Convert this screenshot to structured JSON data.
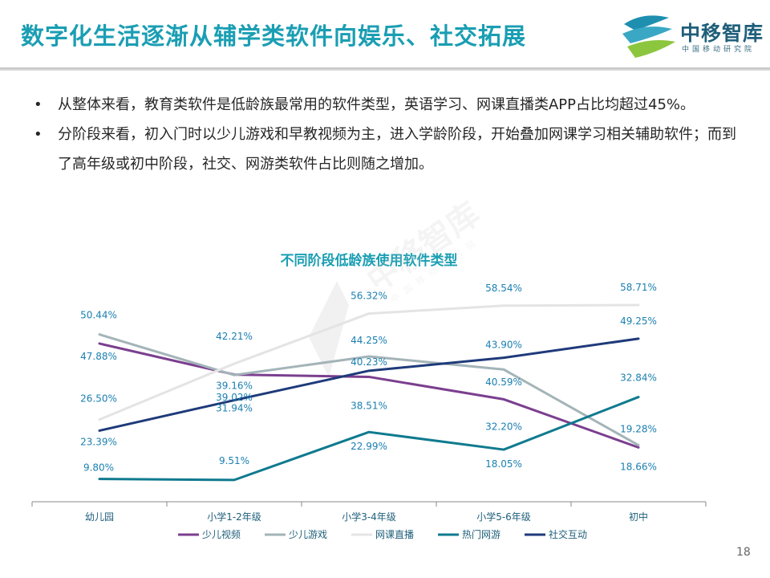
{
  "header": {
    "title": "数字化生活逐渐从辅学类软件向娱乐、社交拓展",
    "logo_name": "中移智库",
    "logo_sub": "中国移动研究院"
  },
  "bullets": [
    "从整体来看，教育类软件是低龄族最常用的软件类型，英语学习、网课直播类APP占比均超过45%。",
    "分阶段来看，初入门时以少儿游戏和早教视频为主，进入学龄阶段，开始叠加网课学习相关辅助软件；而到了高年级或初中阶段，社交、网游类软件占比则随之增加。"
  ],
  "bullet_marker": "•",
  "page_number": "18",
  "colors": {
    "accent": "#1a9eb3",
    "series": [
      "#7b3f8f",
      "#a3b4b8",
      "#e4e4e4",
      "#0f7a8f",
      "#1e3a7a"
    ]
  },
  "chart_data": {
    "type": "line",
    "title": "不同阶段低龄族使用软件类型",
    "categories": [
      "幼儿园",
      "小学1-2年级",
      "小学3-4年级",
      "小学5-6年级",
      "初中"
    ],
    "ylim": [
      0,
      70
    ],
    "xlabel": "",
    "ylabel": "",
    "legend_position": "bottom",
    "grid": false,
    "series": [
      {
        "name": "少儿视频",
        "values": [
          47.88,
          39.16,
          38.51,
          32.2,
          18.66
        ],
        "labels": [
          "47.88%",
          "39.16%",
          "38.51%",
          "32.20%",
          "18.66%"
        ]
      },
      {
        "name": "少儿游戏",
        "values": [
          50.44,
          39.02,
          44.25,
          40.59,
          19.28
        ],
        "labels": [
          "50.44%",
          "39.02%",
          "44.25%",
          "40.59%",
          "19.28%"
        ]
      },
      {
        "name": "网课直播",
        "values": [
          26.5,
          42.21,
          56.32,
          58.54,
          58.71
        ],
        "labels": [
          "26.50%",
          "42.21%",
          "56.32%",
          "58.54%",
          "58.71%"
        ]
      },
      {
        "name": "热门网游",
        "values": [
          9.8,
          9.51,
          22.99,
          18.05,
          32.84
        ],
        "labels": [
          "9.80%",
          "9.51%",
          "22.99%",
          "18.05%",
          "32.84%"
        ]
      },
      {
        "name": "社交互动",
        "values": [
          23.39,
          31.94,
          40.23,
          43.9,
          49.25
        ],
        "labels": [
          "23.39%",
          "31.94%",
          "40.23%",
          "43.90%",
          "49.25%"
        ]
      }
    ]
  }
}
